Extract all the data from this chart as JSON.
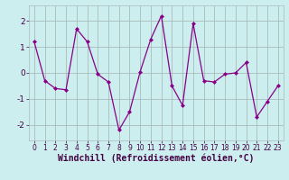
{
  "x": [
    0,
    1,
    2,
    3,
    4,
    5,
    6,
    7,
    8,
    9,
    10,
    11,
    12,
    13,
    14,
    15,
    16,
    17,
    18,
    19,
    20,
    21,
    22,
    23
  ],
  "y": [
    1.2,
    -0.3,
    -0.6,
    -0.65,
    1.7,
    1.2,
    -0.05,
    -0.35,
    -2.2,
    -1.5,
    0.05,
    1.3,
    2.2,
    -0.5,
    -1.25,
    1.9,
    -0.3,
    -0.35,
    -0.05,
    0.0,
    0.4,
    -1.7,
    -1.1,
    -0.5
  ],
  "line_color": "#880088",
  "marker": "D",
  "marker_size": 2,
  "bg_color": "#cceeee",
  "grid_color": "#aabbbb",
  "xlabel": "Windchill (Refroidissement éolien,°C)",
  "ylim": [
    -2.6,
    2.6
  ],
  "xlim": [
    -0.5,
    23.5
  ],
  "yticks": [
    -2,
    -1,
    0,
    1,
    2
  ],
  "xticks": [
    0,
    1,
    2,
    3,
    4,
    5,
    6,
    7,
    8,
    9,
    10,
    11,
    12,
    13,
    14,
    15,
    16,
    17,
    18,
    19,
    20,
    21,
    22,
    23
  ],
  "tick_fontsize": 5.5,
  "xlabel_fontsize": 7,
  "ytick_fontsize": 6.5
}
